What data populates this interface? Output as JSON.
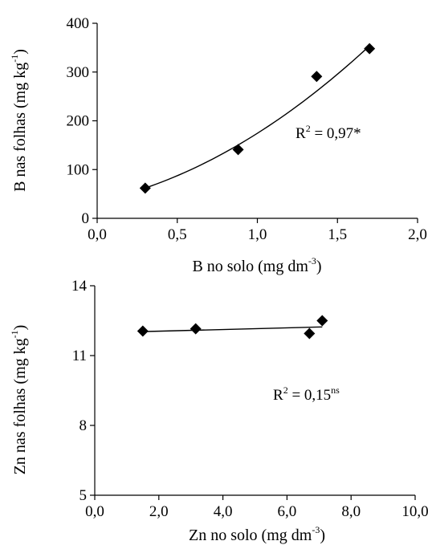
{
  "chart_data": [
    {
      "type": "scatter",
      "title": "",
      "xlabel": "B no solo (mg dm",
      "xlabel_sup": "-3",
      "xlabel_end": ")",
      "ylabel": "B nas folhas (mg kg",
      "ylabel_sup": "-1",
      "ylabel_end": ")",
      "xlim": [
        0,
        2
      ],
      "ylim": [
        0,
        400
      ],
      "xticks": [
        0,
        0.5,
        1.0,
        1.5,
        2.0
      ],
      "xtick_labels": [
        "0,0",
        "0,5",
        "1,0",
        "1,5",
        "2,0"
      ],
      "yticks": [
        0,
        100,
        200,
        300,
        400
      ],
      "ytick_labels": [
        "0",
        "100",
        "200",
        "300",
        "400"
      ],
      "grid": false,
      "series": [
        {
          "marker": "diamond",
          "color": "#000000",
          "points": [
            {
              "x": 0.3,
              "y": 62
            },
            {
              "x": 0.88,
              "y": 141
            },
            {
              "x": 1.37,
              "y": 291
            },
            {
              "x": 1.7,
              "y": 348
            }
          ]
        }
      ],
      "fit": {
        "type": "quadratic",
        "x_range": [
          0.3,
          1.7
        ],
        "curve_points": [
          [
            0.3,
            62
          ],
          [
            0.88,
            151
          ],
          [
            1.37,
            260
          ],
          [
            1.7,
            354
          ]
        ]
      },
      "annotation": {
        "text": "R",
        "sup": "2",
        "text_end": " = 0,97*"
      }
    },
    {
      "type": "scatter",
      "title": "",
      "xlabel": "Zn no solo (mg dm",
      "xlabel_sup": "-3",
      "xlabel_end": ")",
      "ylabel": "Zn nas folhas (mg kg",
      "ylabel_sup": "-1",
      "ylabel_end": ")",
      "xlim": [
        0,
        10
      ],
      "ylim": [
        5,
        14
      ],
      "xticks": [
        0,
        2,
        4,
        6,
        8,
        10
      ],
      "xtick_labels": [
        "0,0",
        "2,0",
        "4,0",
        "6,0",
        "8,0",
        "10,0"
      ],
      "yticks": [
        5,
        8,
        11,
        14
      ],
      "ytick_labels": [
        "5",
        "8",
        "11",
        "14"
      ],
      "grid": false,
      "series": [
        {
          "marker": "diamond",
          "color": "#000000",
          "points": [
            {
              "x": 1.5,
              "y": 12.05
            },
            {
              "x": 3.15,
              "y": 12.15
            },
            {
              "x": 6.7,
              "y": 11.95
            },
            {
              "x": 7.1,
              "y": 12.5
            }
          ]
        }
      ],
      "fit": {
        "type": "linear",
        "x_range": [
          1.5,
          7.1
        ],
        "curve_points": [
          [
            1.5,
            12.03
          ],
          [
            7.1,
            12.23
          ]
        ]
      },
      "annotation": {
        "text": "R",
        "sup": "2",
        "text_end": " = 0,15",
        "sup_end": "ns"
      }
    }
  ]
}
